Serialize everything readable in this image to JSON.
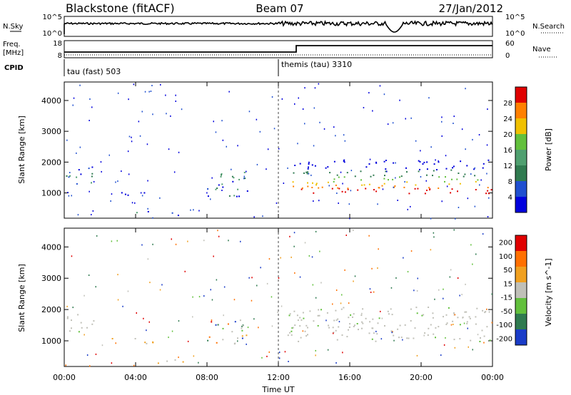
{
  "header": {
    "title": "Blackstone (fitACF)",
    "beam": "Beam 07",
    "date": "27/Jan/2012"
  },
  "nsky_panel": {
    "label": "N.Sky",
    "right_label": "N.Search",
    "left_ticks": [
      "10^5",
      "10^0"
    ],
    "right_ticks": [
      "10^5",
      "10^0"
    ]
  },
  "freq_panel": {
    "label_line1": "Freq.",
    "label_line2": "[MHz]",
    "right_label": "Nave",
    "left_ticks": [
      "18",
      "8"
    ],
    "right_ticks": [
      "60",
      "0"
    ]
  },
  "cpid": {
    "label": "CPID",
    "modes": [
      {
        "name": "tau (fast) 503",
        "start_hour": 0
      },
      {
        "name": "themis (tau) 3310",
        "start_hour": 12.0
      }
    ]
  },
  "colors": {
    "power": [
      "#0000dd",
      "#1f4fd0",
      "#2f7a4f",
      "#4f9f6f",
      "#62c03c",
      "#f0c000",
      "#ff8000",
      "#e00000"
    ],
    "velocity": [
      "#1a3cc8",
      "#2f7a4f",
      "#62c03c",
      "#c0c0b8",
      "#f0a020",
      "#ff7000",
      "#e00000"
    ]
  },
  "chart_data": [
    {
      "type": "heatmap",
      "panel": "power",
      "ylabel": "Slant Range [km]",
      "ylim": [
        180,
        4600
      ],
      "xlim": [
        0,
        24
      ],
      "y_ticks": [
        "1000",
        "2000",
        "3000",
        "4000"
      ],
      "y_tick_values": [
        1000,
        2000,
        3000,
        4000
      ],
      "colorbar_label": "Power [dB]",
      "colorbar_ticks": [
        "4",
        "8",
        "12",
        "16",
        "20",
        "24",
        "28"
      ],
      "regions": [
        {
          "x": [
            0.1,
            1.9
          ],
          "y": [
            1300,
            1900
          ],
          "level": "mixed-power"
        },
        {
          "x": [
            2.5,
            4.5
          ],
          "y": [
            900,
            1100
          ],
          "level": "low"
        },
        {
          "x": [
            4.0,
            6.8
          ],
          "y": [
            280,
            420
          ],
          "level": "low-mid"
        },
        {
          "x": [
            8.0,
            10.5
          ],
          "y": [
            900,
            1700
          ],
          "level": "low-mid"
        },
        {
          "x": [
            12.5,
            24.0
          ],
          "y": [
            1000,
            2100
          ],
          "level": "high"
        }
      ]
    },
    {
      "type": "heatmap",
      "panel": "velocity",
      "ylabel": "Slant Range [km]",
      "ylim": [
        180,
        4600
      ],
      "xlim": [
        0,
        24
      ],
      "y_ticks": [
        "1000",
        "2000",
        "3000",
        "4000"
      ],
      "y_tick_values": [
        1000,
        2000,
        3000,
        4000
      ],
      "colorbar_label": "Velocity [m s^-1]",
      "colorbar_ticks": [
        "200",
        "100",
        "50",
        "15",
        "-15",
        "-50",
        "-100",
        "-200"
      ],
      "regions": [
        {
          "x": [
            0.1,
            1.9
          ],
          "y": [
            1300,
            1900
          ],
          "level": "near-zero"
        },
        {
          "x": [
            2.5,
            5.0
          ],
          "y": [
            900,
            1100
          ],
          "level": "slightly-negative"
        },
        {
          "x": [
            4.0,
            7.0
          ],
          "y": [
            300,
            420
          ],
          "level": "negative"
        },
        {
          "x": [
            8.0,
            10.5
          ],
          "y": [
            900,
            1700
          ],
          "level": "mixed"
        },
        {
          "x": [
            12.5,
            24.0
          ],
          "y": [
            1000,
            2100
          ],
          "level": "near-zero"
        }
      ]
    }
  ],
  "x_axis": {
    "label": "Time UT",
    "ticks": [
      "00:00",
      "04:00",
      "08:00",
      "12:00",
      "16:00",
      "20:00",
      "00:00"
    ],
    "tick_hours": [
      0,
      4,
      8,
      12,
      16,
      20,
      24
    ]
  }
}
